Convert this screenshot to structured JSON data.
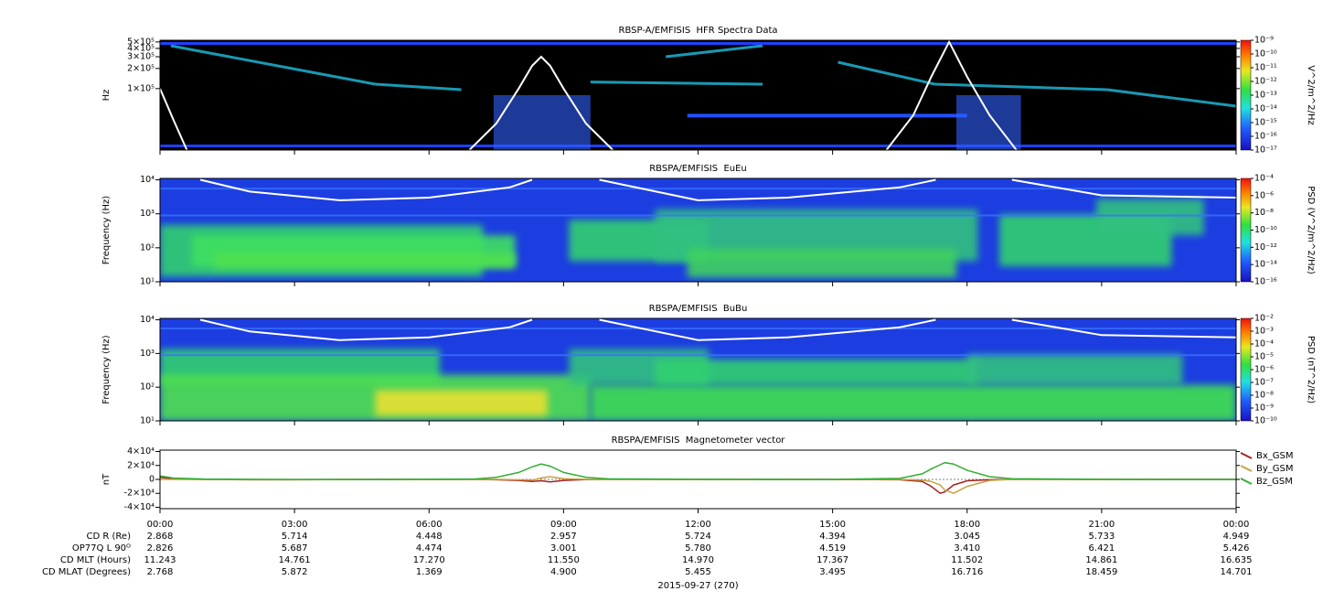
{
  "chart_data": [
    {
      "type": "spectrogram",
      "title": "RBSP-A/EMFISIS  HFR Spectra Data",
      "ylabel": "Hz",
      "ylog": true,
      "ylim": [
        12000,
        530000
      ],
      "yticks": [
        {
          "value": 100000,
          "label": "1×10⁵"
        },
        {
          "value": 200000,
          "label": "2×10⁵"
        },
        {
          "value": 300000,
          "label": "3×10⁵"
        },
        {
          "value": 400000,
          "label": "4×10⁵"
        },
        {
          "value": 500000,
          "label": "5×10⁵"
        }
      ],
      "x": [
        0,
        0.3,
        0.6,
        3,
        6.9,
        7.5,
        8,
        8.3,
        8.5,
        8.7,
        9,
        9.5,
        10.1,
        13,
        16.2,
        16.8,
        17.2,
        17.6,
        18,
        18.5,
        19.1
      ],
      "values": [
        100000,
        34000,
        12000,
        null,
        12000,
        30000,
        100000,
        220000,
        300000,
        220000,
        100000,
        30000,
        12000,
        null,
        12000,
        40000,
        150000,
        500000,
        150000,
        40000,
        12000
      ],
      "line_color": "#ffffff",
      "background": "#000000",
      "colorbar": {
        "label": "V^2/m^2/Hz",
        "log": true,
        "lim": [
          1e-17,
          1e-09
        ],
        "ticks": [
          {
            "value": 1e-09,
            "label": "10⁻⁹"
          },
          {
            "value": 1e-10,
            "label": "10⁻¹⁰"
          },
          {
            "value": 1e-11,
            "label": "10⁻¹¹"
          },
          {
            "value": 1e-12,
            "label": "10⁻¹²"
          },
          {
            "value": 1e-13,
            "label": "10⁻¹³"
          },
          {
            "value": 1e-14,
            "label": "10⁻¹⁴"
          },
          {
            "value": 1e-15,
            "label": "10⁻¹⁵"
          },
          {
            "value": 1e-16,
            "label": "10⁻¹⁶"
          },
          {
            "value": 1e-17,
            "label": "10⁻¹⁷"
          }
        ]
      }
    },
    {
      "type": "spectrogram",
      "title": "RBSPA/EMFISIS  EuEu",
      "ylabel": "Frequency (Hz)",
      "ylog": true,
      "ylim": [
        10,
        11000
      ],
      "yticks": [
        {
          "value": 10,
          "label": "10¹"
        },
        {
          "value": 100,
          "label": "10²"
        },
        {
          "value": 1000,
          "label": "10³"
        },
        {
          "value": 10000,
          "label": "10⁴"
        }
      ],
      "x": [
        0.9,
        2,
        4,
        6,
        7.8,
        8.3,
        9,
        9.8,
        12,
        14,
        16.5,
        17.3,
        18,
        19,
        21,
        24
      ],
      "values": [
        10000,
        4500,
        2500,
        3000,
        6000,
        10000,
        null,
        10000,
        2500,
        3000,
        6000,
        10000,
        null,
        10000,
        3500,
        3000
      ],
      "line_color": "#ffffff",
      "background": "#1c3de0",
      "colorbar": {
        "label": "PSD (V^2/m^2/Hz)",
        "log": true,
        "lim": [
          1e-16,
          0.0001
        ],
        "ticks": [
          {
            "value": 0.0001,
            "label": "10⁻⁴"
          },
          {
            "value": 1e-06,
            "label": "10⁻⁶"
          },
          {
            "value": 1e-08,
            "label": "10⁻⁸"
          },
          {
            "value": 1e-10,
            "label": "10⁻¹⁰"
          },
          {
            "value": 1e-12,
            "label": "10⁻¹²"
          },
          {
            "value": 1e-14,
            "label": "10⁻¹⁴"
          },
          {
            "value": 1e-16,
            "label": "10⁻¹⁶"
          }
        ]
      }
    },
    {
      "type": "spectrogram",
      "title": "RBSPA/EMFISIS  BuBu",
      "ylabel": "Frequency (Hz)",
      "ylog": true,
      "ylim": [
        10,
        11000
      ],
      "yticks": [
        {
          "value": 10,
          "label": "10¹"
        },
        {
          "value": 100,
          "label": "10²"
        },
        {
          "value": 1000,
          "label": "10³"
        },
        {
          "value": 10000,
          "label": "10⁴"
        }
      ],
      "x": [
        0.9,
        2,
        4,
        6,
        7.8,
        8.3,
        9,
        9.8,
        12,
        14,
        16.5,
        17.3,
        18,
        19,
        21,
        24
      ],
      "values": [
        10000,
        4500,
        2500,
        3000,
        6000,
        10000,
        null,
        10000,
        2500,
        3000,
        6000,
        10000,
        null,
        10000,
        3500,
        3000
      ],
      "line_color": "#ffffff",
      "background": "#1c3de0",
      "colorbar": {
        "label": "PSD (nT^2/Hz)",
        "log": true,
        "lim": [
          1e-10,
          0.01
        ],
        "ticks": [
          {
            "value": 0.01,
            "label": "10⁻²"
          },
          {
            "value": 0.001,
            "label": "10⁻³"
          },
          {
            "value": 0.0001,
            "label": "10⁻⁴"
          },
          {
            "value": 1e-05,
            "label": "10⁻⁵"
          },
          {
            "value": 1e-06,
            "label": "10⁻⁶"
          },
          {
            "value": 1e-07,
            "label": "10⁻⁷"
          },
          {
            "value": 1e-08,
            "label": "10⁻⁸"
          },
          {
            "value": 1e-09,
            "label": "10⁻⁹"
          },
          {
            "value": 1e-10,
            "label": "10⁻¹⁰"
          }
        ]
      }
    },
    {
      "type": "line",
      "title": "RBSPA/EMFISIS  Magnetometer vector",
      "ylabel": "nT",
      "ylim": [
        -42000,
        42000
      ],
      "yticks": [
        {
          "value": 40000,
          "label": "4×10⁴"
        },
        {
          "value": 20000,
          "label": "2×10⁴"
        },
        0,
        {
          "value": -20000,
          "label": "-2×10⁴"
        },
        {
          "value": -40000,
          "label": "-4×10⁴"
        }
      ],
      "xlim": [
        0,
        24
      ],
      "xticks": [
        {
          "value": 0,
          "label": "00:00"
        },
        {
          "value": 3,
          "label": "03:00"
        },
        {
          "value": 6,
          "label": "06:00"
        },
        {
          "value": 9,
          "label": "09:00"
        },
        {
          "value": 12,
          "label": "12:00"
        },
        {
          "value": 15,
          "label": "15:00"
        },
        {
          "value": 18,
          "label": "18:00"
        },
        {
          "value": 21,
          "label": "21:00"
        },
        {
          "value": 24,
          "label": "00:00"
        }
      ],
      "xlabel": "2015-09-27 (270)",
      "x": [
        0,
        0.3,
        1,
        2,
        3,
        5,
        7,
        7.5,
        8,
        8.3,
        8.5,
        8.7,
        9,
        9.5,
        10,
        12,
        15,
        16.5,
        17,
        17.2,
        17.4,
        17.5,
        17.7,
        18,
        18.5,
        19,
        21,
        24
      ],
      "series": [
        {
          "name": "Bx_GSM",
          "color": "#a82020",
          "values": [
            3000,
            1000,
            0,
            -500,
            -500,
            0,
            0,
            -500,
            -1500,
            -3000,
            -2000,
            -3500,
            -1500,
            -300,
            0,
            0,
            0,
            -500,
            -3000,
            -10000,
            -20000,
            -18000,
            -8000,
            -2000,
            -500,
            0,
            0,
            0
          ]
        },
        {
          "name": "By_GSM",
          "color": "#c8a040",
          "values": [
            0,
            0,
            -200,
            -300,
            -300,
            0,
            0,
            0,
            -500,
            -1000,
            2000,
            4000,
            1000,
            0,
            0,
            0,
            0,
            0,
            -1000,
            -3000,
            -8000,
            -15000,
            -20000,
            -10000,
            -1500,
            0,
            0,
            0
          ]
        },
        {
          "name": "Bz_GSM",
          "color": "#30b030",
          "values": [
            5000,
            2000,
            500,
            100,
            0,
            0,
            500,
            3000,
            10000,
            18000,
            22000,
            19000,
            10000,
            3000,
            800,
            100,
            0,
            1500,
            8000,
            15000,
            21000,
            24000,
            22000,
            13000,
            4000,
            1000,
            100,
            0
          ]
        }
      ]
    }
  ],
  "ephemeris": {
    "rows": [
      {
        "label": "CD R (Re)",
        "values": [
          "2.868",
          "5.714",
          "4.448",
          "2.957",
          "5.724",
          "4.394",
          "3.045",
          "5.733",
          "4.949"
        ]
      },
      {
        "label": "OP77Q L 90ᴼ",
        "values": [
          "2.826",
          "5.687",
          "4.474",
          "3.001",
          "5.780",
          "4.519",
          "3.410",
          "6.421",
          "5.426"
        ]
      },
      {
        "label": "CD MLT (Hours)",
        "values": [
          "11.243",
          "14.761",
          "17.270",
          "11.550",
          "14.970",
          "17.367",
          "11.502",
          "14.861",
          "16.635"
        ]
      },
      {
        "label": "CD MLAT (Degrees)",
        "values": [
          "2.768",
          "5.872",
          "1.369",
          "4.900",
          "5.455",
          "3.495",
          "16.716",
          "18.459",
          "14.701"
        ]
      }
    ]
  }
}
